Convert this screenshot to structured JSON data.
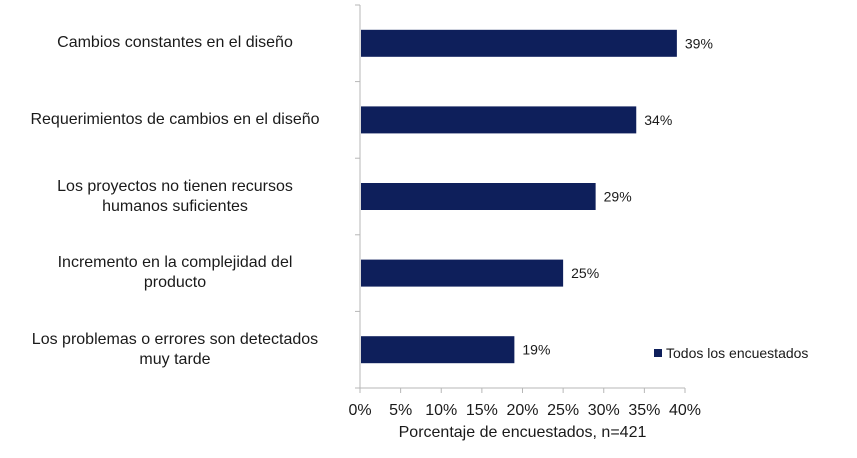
{
  "chart_data": {
    "type": "bar",
    "orientation": "horizontal",
    "categories": [
      "Cambios constantes en el diseño",
      "Requerimientos de cambios en el diseño",
      "Los proyectos no tienen recursos humanos suficientes",
      "Incremento en la complejidad del producto",
      "Los problemas o errores son detectados muy tarde"
    ],
    "category_lines": [
      [
        "Cambios constantes en el diseño"
      ],
      [
        "Requerimientos de cambios en el diseño"
      ],
      [
        "Los proyectos no tienen recursos",
        "humanos suficientes"
      ],
      [
        "Incremento en la complejidad del",
        "producto"
      ],
      [
        "Los problemas o errores son detectados",
        "muy tarde"
      ]
    ],
    "series": [
      {
        "name": "Todos los encuestados",
        "values": [
          39,
          34,
          29,
          25,
          19
        ]
      }
    ],
    "data_labels": [
      "39%",
      "34%",
      "29%",
      "25%",
      "19%"
    ],
    "xlim": [
      0,
      40
    ],
    "xticks": [
      0,
      5,
      10,
      15,
      20,
      25,
      30,
      35,
      40
    ],
    "xtick_labels": [
      "0%",
      "5%",
      "10%",
      "15%",
      "20%",
      "25%",
      "30%",
      "35%",
      "40%"
    ],
    "xlabel": "Porcentaje de encuestados, n=421",
    "ylabel": "",
    "title": "",
    "grid": false,
    "legend_position": "bottom-right",
    "bar_color": "#0e1f5b"
  }
}
